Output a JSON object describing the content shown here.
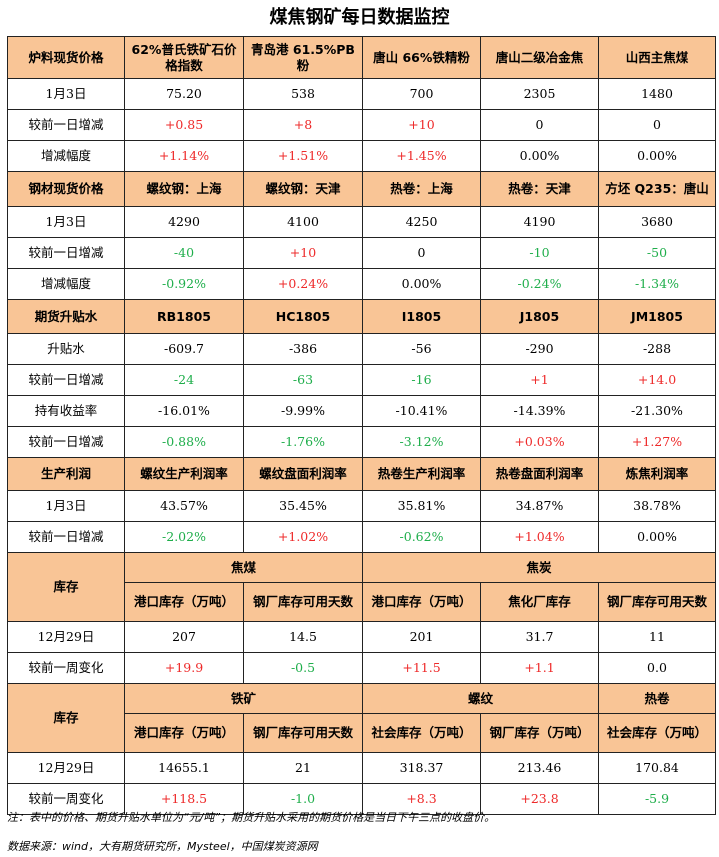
{
  "title": "煤焦钢矿每日数据监控",
  "s1": {
    "header": [
      "炉料现货价格",
      "62%普氏铁矿石价格指数",
      "青岛港 61.5%PB粉",
      "唐山 66%铁精粉",
      "唐山二级冶金焦",
      "山西主焦煤"
    ],
    "rows": [
      {
        "label": "1月3日",
        "cells": [
          {
            "v": "75.20",
            "c": ""
          },
          {
            "v": "538",
            "c": ""
          },
          {
            "v": "700",
            "c": ""
          },
          {
            "v": "2305",
            "c": ""
          },
          {
            "v": "1480",
            "c": ""
          }
        ]
      },
      {
        "label": "较前一日增减",
        "cells": [
          {
            "v": "+0.85",
            "c": "red"
          },
          {
            "v": "+8",
            "c": "red"
          },
          {
            "v": "+10",
            "c": "red"
          },
          {
            "v": "0",
            "c": ""
          },
          {
            "v": "0",
            "c": ""
          }
        ]
      },
      {
        "label": "增减幅度",
        "cells": [
          {
            "v": "+1.14%",
            "c": "red"
          },
          {
            "v": "+1.51%",
            "c": "red"
          },
          {
            "v": "+1.45%",
            "c": "red"
          },
          {
            "v": "0.00%",
            "c": ""
          },
          {
            "v": "0.00%",
            "c": ""
          }
        ]
      }
    ]
  },
  "s2": {
    "header": [
      "钢材现货价格",
      "螺纹钢：上海",
      "螺纹钢：天津",
      "热卷：上海",
      "热卷：天津",
      "方坯 Q235：唐山"
    ],
    "rows": [
      {
        "label": "1月3日",
        "cells": [
          {
            "v": "4290",
            "c": ""
          },
          {
            "v": "4100",
            "c": ""
          },
          {
            "v": "4250",
            "c": ""
          },
          {
            "v": "4190",
            "c": ""
          },
          {
            "v": "3680",
            "c": ""
          }
        ]
      },
      {
        "label": "较前一日增减",
        "cells": [
          {
            "v": "-40",
            "c": "green"
          },
          {
            "v": "+10",
            "c": "red"
          },
          {
            "v": "0",
            "c": ""
          },
          {
            "v": "-10",
            "c": "green"
          },
          {
            "v": "-50",
            "c": "green"
          }
        ]
      },
      {
        "label": "增减幅度",
        "cells": [
          {
            "v": "-0.92%",
            "c": "green"
          },
          {
            "v": "+0.24%",
            "c": "red"
          },
          {
            "v": "0.00%",
            "c": ""
          },
          {
            "v": "-0.24%",
            "c": "green"
          },
          {
            "v": "-1.34%",
            "c": "green"
          }
        ]
      }
    ]
  },
  "s3": {
    "header": [
      "期货升贴水",
      "RB1805",
      "HC1805",
      "I1805",
      "J1805",
      "JM1805"
    ],
    "rows": [
      {
        "label": "升贴水",
        "cells": [
          {
            "v": "-609.7",
            "c": ""
          },
          {
            "v": "-386",
            "c": ""
          },
          {
            "v": "-56",
            "c": ""
          },
          {
            "v": "-290",
            "c": ""
          },
          {
            "v": "-288",
            "c": ""
          }
        ]
      },
      {
        "label": "较前一日增减",
        "cells": [
          {
            "v": "-24",
            "c": "green"
          },
          {
            "v": "-63",
            "c": "green"
          },
          {
            "v": "-16",
            "c": "green"
          },
          {
            "v": "+1",
            "c": "red"
          },
          {
            "v": "+14.0",
            "c": "red"
          }
        ]
      },
      {
        "label": "持有收益率",
        "cells": [
          {
            "v": "-16.01%",
            "c": ""
          },
          {
            "v": "-9.99%",
            "c": ""
          },
          {
            "v": "-10.41%",
            "c": ""
          },
          {
            "v": "-14.39%",
            "c": ""
          },
          {
            "v": "-21.30%",
            "c": ""
          }
        ]
      },
      {
        "label": "较前一日增减",
        "cells": [
          {
            "v": "-0.88%",
            "c": "green"
          },
          {
            "v": "-1.76%",
            "c": "green"
          },
          {
            "v": "-3.12%",
            "c": "green"
          },
          {
            "v": "+0.03%",
            "c": "red"
          },
          {
            "v": "+1.27%",
            "c": "red"
          }
        ]
      }
    ]
  },
  "s4": {
    "header": [
      "生产利润",
      "螺纹生产利润率",
      "螺纹盘面利润率",
      "热卷生产利润率",
      "热卷盘面利润率",
      "炼焦利润率"
    ],
    "rows": [
      {
        "label": "1月3日",
        "cells": [
          {
            "v": "43.57%",
            "c": ""
          },
          {
            "v": "35.45%",
            "c": ""
          },
          {
            "v": "35.81%",
            "c": ""
          },
          {
            "v": "34.87%",
            "c": ""
          },
          {
            "v": "38.78%",
            "c": ""
          }
        ]
      },
      {
        "label": "较前一日增减",
        "cells": [
          {
            "v": "-2.02%",
            "c": "green"
          },
          {
            "v": "+1.02%",
            "c": "red"
          },
          {
            "v": "-0.62%",
            "c": "green"
          },
          {
            "v": "+1.04%",
            "c": "red"
          },
          {
            "v": "0.00%",
            "c": ""
          }
        ]
      }
    ]
  },
  "s5": {
    "label": "库存",
    "group1": "焦煤",
    "group2": "焦炭",
    "sub": [
      "港口库存（万吨）",
      "钢厂库存可用天数",
      "港口库存（万吨）",
      "焦化厂库存",
      "钢厂库存可用天数"
    ],
    "rows": [
      {
        "label": "12月29日",
        "cells": [
          {
            "v": "207",
            "c": ""
          },
          {
            "v": "14.5",
            "c": ""
          },
          {
            "v": "201",
            "c": ""
          },
          {
            "v": "31.7",
            "c": ""
          },
          {
            "v": "11",
            "c": ""
          }
        ]
      },
      {
        "label": "较前一周变化",
        "cells": [
          {
            "v": "+19.9",
            "c": "red"
          },
          {
            "v": "-0.5",
            "c": "green"
          },
          {
            "v": "+11.5",
            "c": "red"
          },
          {
            "v": "+1.1",
            "c": "red"
          },
          {
            "v": "0.0",
            "c": ""
          }
        ]
      }
    ]
  },
  "s6": {
    "label": "库存",
    "group1": "铁矿",
    "group2": "螺纹",
    "group3": "热卷",
    "sub": [
      "港口库存（万吨）",
      "钢厂库存可用天数",
      "社会库存（万吨）",
      "钢厂库存（万吨）",
      "社会库存（万吨）"
    ],
    "rows": [
      {
        "label": "12月29日",
        "cells": [
          {
            "v": "14655.1",
            "c": ""
          },
          {
            "v": "21",
            "c": ""
          },
          {
            "v": "318.37",
            "c": ""
          },
          {
            "v": "213.46",
            "c": ""
          },
          {
            "v": "170.84",
            "c": ""
          }
        ]
      },
      {
        "label": "较前一周变化",
        "cells": [
          {
            "v": "+118.5",
            "c": "red"
          },
          {
            "v": "-1.0",
            "c": "green"
          },
          {
            "v": "+8.3",
            "c": "red"
          },
          {
            "v": "+23.8",
            "c": "red"
          },
          {
            "v": "-5.9",
            "c": "green"
          }
        ]
      }
    ]
  },
  "note": "注：表中的价格、期货升贴水单位为“元/吨”；期货升贴水采用的期货价格是当日下午三点的收盘价。",
  "source": "数据来源：wind，大有期货研究所，Mysteel，中国煤炭资源网",
  "colors": {
    "header_bg": "#f9c596",
    "up": "#ee2a2a",
    "down": "#1fae4b"
  }
}
